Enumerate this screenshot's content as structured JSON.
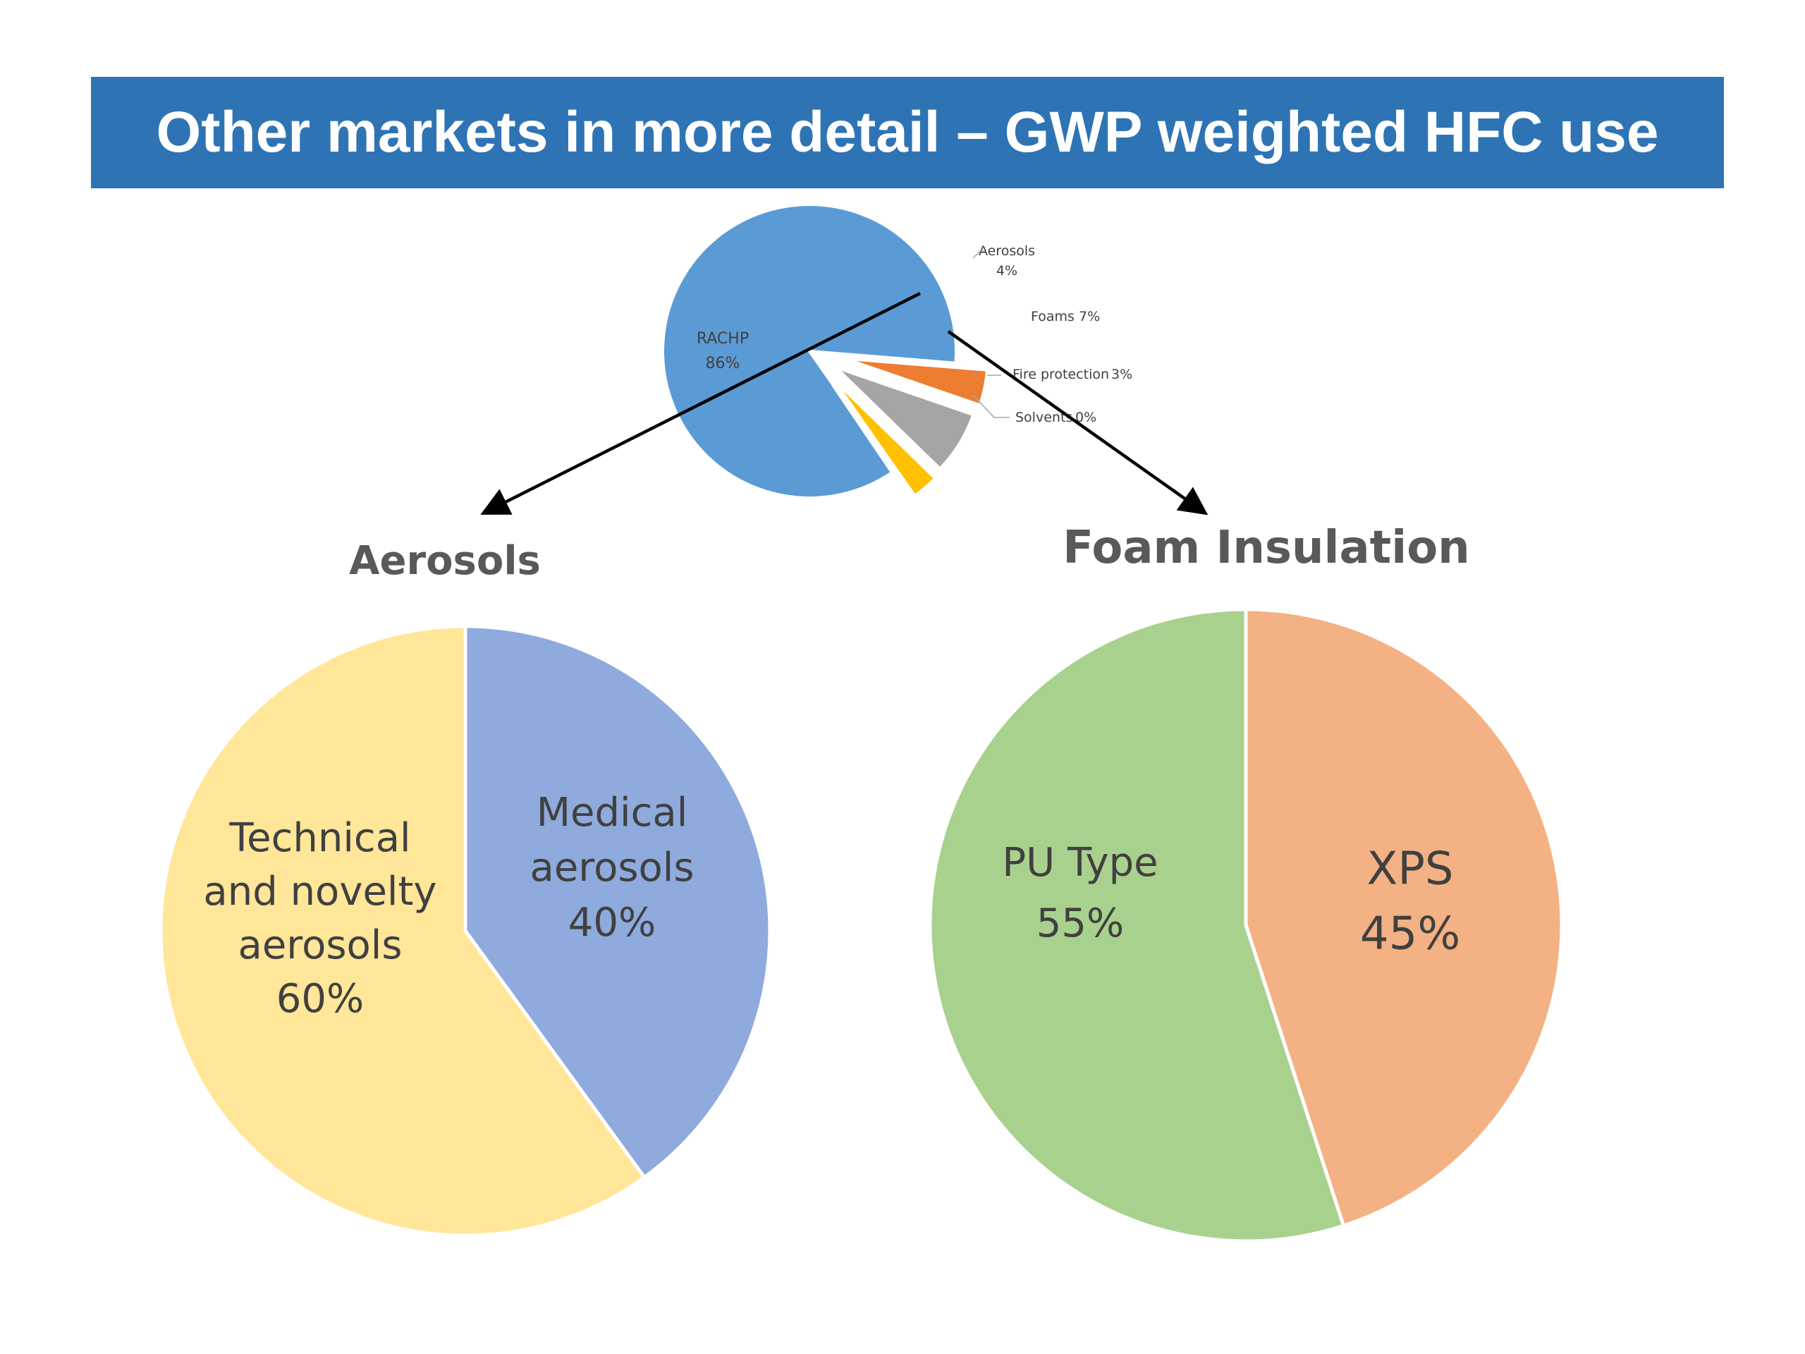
{
  "slide": {
    "title": "Other markets in more detail – GWP weighted HFC use"
  },
  "colors": {
    "title_bar": "#2e74b5",
    "title_text": "#ffffff",
    "arrow": "#000000"
  },
  "chart_data": [
    {
      "type": "pie",
      "title": "",
      "exploded": true,
      "label_style": "leader-lines",
      "slices": [
        {
          "name": "RACHP",
          "label": "RACHP",
          "value_label": "86%",
          "value": 86,
          "color": "#5b9bd5"
        },
        {
          "name": "Aerosols",
          "label": "Aerosols",
          "value_label": "4%",
          "value": 4,
          "color": "#ed7d31"
        },
        {
          "name": "Foams",
          "label": "Foams",
          "value_label": "7%",
          "value": 7,
          "color": "#a5a5a5"
        },
        {
          "name": "Fire protection",
          "label": "Fire protection",
          "value_label": "3%",
          "value": 3,
          "color": "#ffc000"
        },
        {
          "name": "Solvents",
          "label": "Solvents",
          "value_label": "0%",
          "value": 0,
          "color": "#4472c4"
        }
      ]
    },
    {
      "type": "pie",
      "title": "Aerosols",
      "slices": [
        {
          "name": "Medical aerosols",
          "label_lines": [
            "Medical",
            "aerosols",
            "40%"
          ],
          "value": 40,
          "color": "#8faadc"
        },
        {
          "name": "Technical and novelty aerosols",
          "label_lines": [
            "Technical",
            "and novelty",
            "aerosols",
            "60%"
          ],
          "value": 60,
          "color": "#ffe699"
        }
      ]
    },
    {
      "type": "pie",
      "title": "Foam Insulation",
      "slices": [
        {
          "name": "XPS",
          "label_lines": [
            "XPS",
            "45%"
          ],
          "value": 45,
          "color": "#f4b183"
        },
        {
          "name": "PU Type",
          "label_lines": [
            "PU Type",
            "55%"
          ],
          "value": 55,
          "color": "#a9d18e"
        }
      ]
    }
  ]
}
